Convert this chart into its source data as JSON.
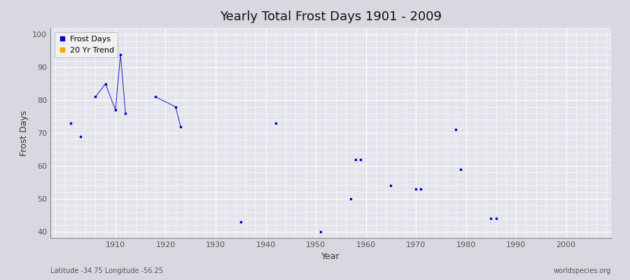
{
  "title": "Yearly Total Frost Days 1901 - 2009",
  "xlabel": "Year",
  "ylabel": "Frost Days",
  "subtitle": "Latitude -34.75 Longitude -56.25",
  "watermark": "worldspecies.org",
  "xlim": [
    1897,
    2009
  ],
  "ylim": [
    38,
    102
  ],
  "yticks": [
    40,
    50,
    60,
    70,
    80,
    90,
    100
  ],
  "xticks": [
    1910,
    1920,
    1930,
    1940,
    1950,
    1960,
    1970,
    1980,
    1990,
    2000
  ],
  "bg_outer": "#d8d8e0",
  "bg_plot": "#e4e4ec",
  "grid_color": "#ffffff",
  "scatter_color": "#0000cc",
  "line_color": "#3333cc",
  "scatter_data": [
    [
      1901,
      73
    ],
    [
      1903,
      69
    ],
    [
      1906,
      81
    ],
    [
      1908,
      85
    ],
    [
      1910,
      77
    ],
    [
      1911,
      94
    ],
    [
      1912,
      76
    ],
    [
      1918,
      81
    ],
    [
      1922,
      78
    ],
    [
      1923,
      72
    ],
    [
      1935,
      43
    ],
    [
      1942,
      73
    ],
    [
      1951,
      40
    ],
    [
      1957,
      50
    ],
    [
      1958,
      62
    ],
    [
      1959,
      62
    ],
    [
      1965,
      54
    ],
    [
      1970,
      53
    ],
    [
      1971,
      53
    ],
    [
      1978,
      71
    ],
    [
      1979,
      59
    ],
    [
      1985,
      44
    ],
    [
      1986,
      44
    ]
  ],
  "line_segments": [
    [
      [
        1906,
        81
      ],
      [
        1908,
        85
      ]
    ],
    [
      [
        1908,
        85
      ],
      [
        1910,
        77
      ]
    ],
    [
      [
        1910,
        77
      ],
      [
        1911,
        94
      ]
    ],
    [
      [
        1911,
        94
      ],
      [
        1912,
        76
      ]
    ],
    [
      [
        1918,
        81
      ],
      [
        1922,
        78
      ]
    ],
    [
      [
        1922,
        78
      ],
      [
        1923,
        72
      ]
    ]
  ]
}
